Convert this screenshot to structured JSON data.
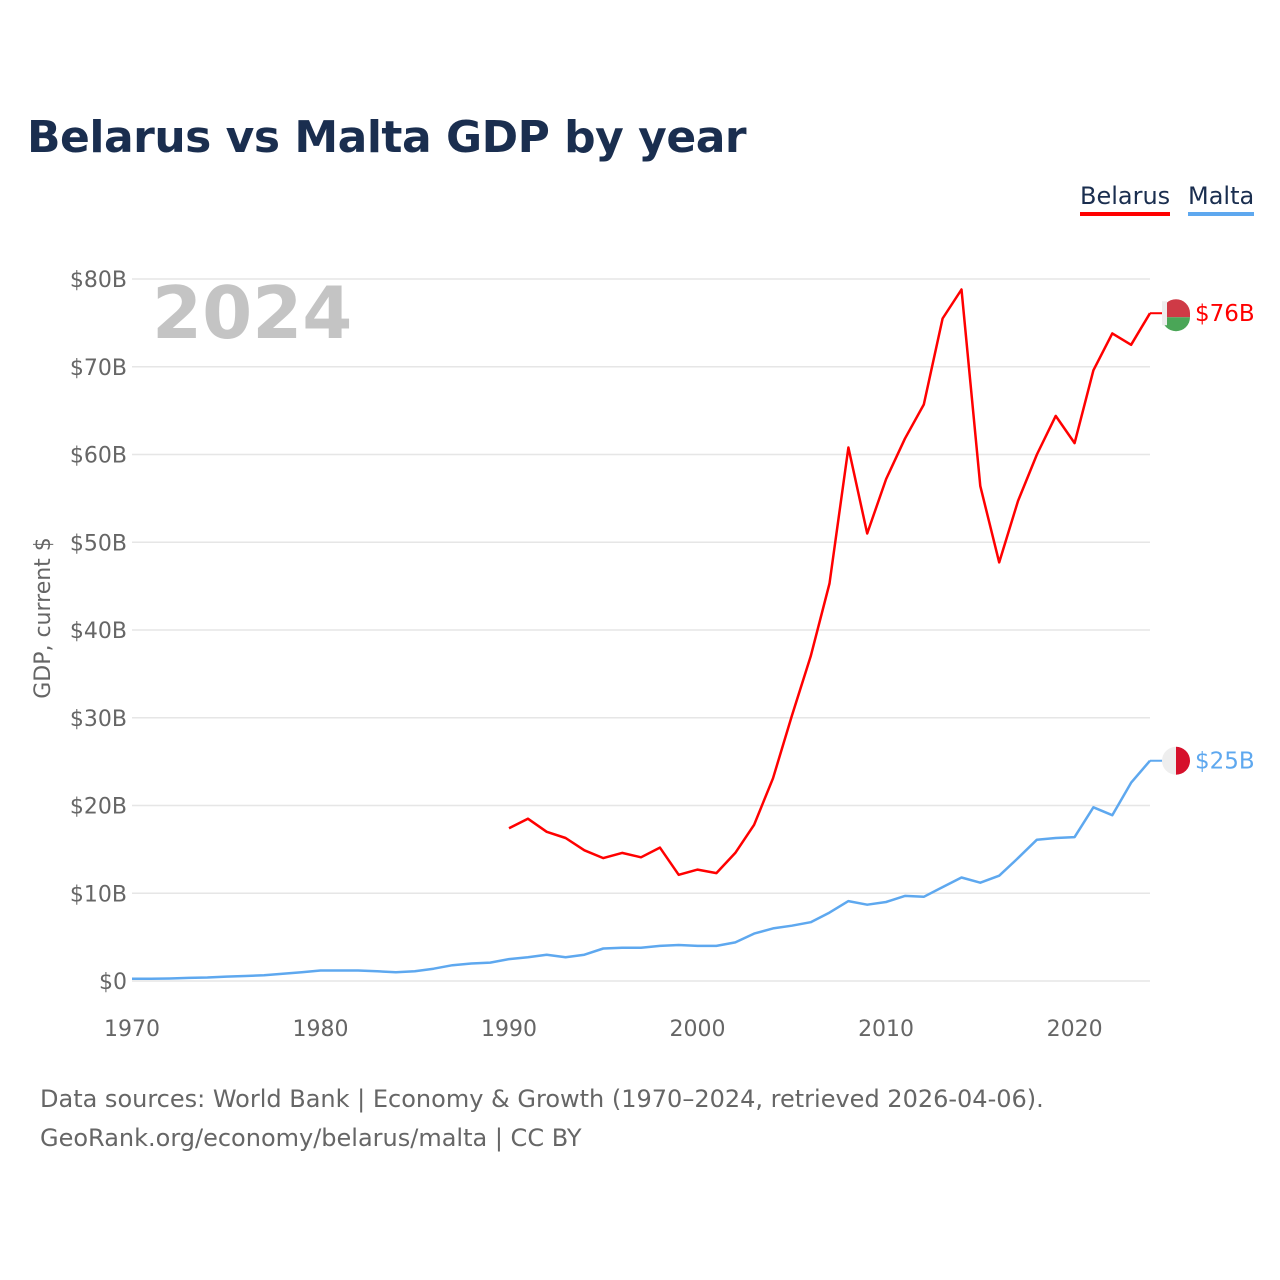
{
  "title": "Belarus vs Malta GDP by year",
  "legend": [
    "Belarus",
    "Malta"
  ],
  "source_line1": "Data sources: World Bank | Economy & Growth (1970–2024, retrieved 2026-04-06).",
  "source_line2": "GeoRank.org/economy/belarus/malta | CC BY",
  "chart_data": {
    "type": "line",
    "title": "Belarus vs Malta GDP by year",
    "ylabel": "GDP, current $",
    "xlabel": "",
    "year_label": "2024",
    "xlim": [
      1970,
      2024
    ],
    "ylim": [
      0,
      80
    ],
    "xticks": [
      1970,
      1980,
      1990,
      2000,
      2010,
      2020
    ],
    "xtick_labels": [
      "1970",
      "1980",
      "1990",
      "2000",
      "2010",
      "2020"
    ],
    "yticks": [
      0,
      10,
      20,
      30,
      40,
      50,
      60,
      70,
      80
    ],
    "ytick_labels": [
      "$0",
      "$10B",
      "$20B",
      "$30B",
      "$40B",
      "$50B",
      "$60B",
      "$70B",
      "$80B"
    ],
    "grid": true,
    "legend_position": "top-right",
    "series": [
      {
        "name": "Belarus",
        "color": "#ff0000",
        "end_label": "$76B",
        "start_year": 1990,
        "values": [
          17.4,
          18.5,
          17.0,
          16.3,
          14.9,
          14.0,
          14.6,
          14.1,
          15.2,
          12.1,
          12.7,
          12.3,
          14.6,
          17.8,
          23.1,
          30.2,
          37.0,
          45.3,
          60.8,
          51.0,
          57.2,
          61.8,
          65.7,
          75.5,
          78.8,
          56.4,
          47.7,
          54.7,
          60.0,
          64.4,
          61.3,
          69.6,
          73.8,
          72.5,
          76.1
        ]
      },
      {
        "name": "Malta",
        "color": "#5ea8ef",
        "end_label": "$25B",
        "start_year": 1970,
        "values": [
          0.25,
          0.26,
          0.29,
          0.35,
          0.4,
          0.5,
          0.57,
          0.65,
          0.82,
          1.0,
          1.2,
          1.2,
          1.2,
          1.1,
          1.0,
          1.1,
          1.4,
          1.8,
          2.0,
          2.1,
          2.5,
          2.7,
          3.0,
          2.7,
          3.0,
          3.7,
          3.8,
          3.8,
          4.0,
          4.1,
          4.0,
          4.0,
          4.4,
          5.4,
          6.0,
          6.3,
          6.7,
          7.8,
          9.1,
          8.7,
          9.0,
          9.7,
          9.6,
          10.7,
          11.8,
          11.2,
          12.0,
          14.0,
          16.1,
          16.3,
          16.4,
          19.8,
          18.9,
          22.6,
          25.1
        ]
      }
    ]
  }
}
